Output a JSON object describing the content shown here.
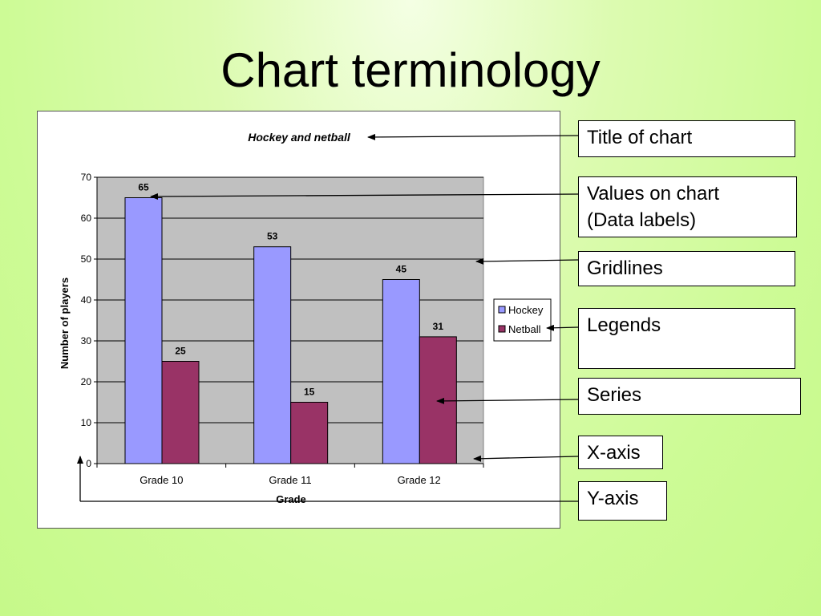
{
  "slide": {
    "title": "Chart terminology"
  },
  "callouts": [
    {
      "id": "title",
      "text": "Title of chart"
    },
    {
      "id": "data-labels",
      "text": "Values on chart\n(Data labels)"
    },
    {
      "id": "gridlines",
      "text": "Gridlines"
    },
    {
      "id": "legends",
      "text": "Legends"
    },
    {
      "id": "series",
      "text": "Series"
    },
    {
      "id": "x-axis",
      "text": "X-axis"
    },
    {
      "id": "y-axis",
      "text": "Y-axis"
    }
  ],
  "colors": {
    "hockey": "#9999ff",
    "netball": "#993366",
    "plot_area": "#c0c0c0"
  },
  "chart_data": {
    "type": "bar",
    "title": "Hockey and netball",
    "xlabel": "Grade",
    "ylabel": "Number of players",
    "categories": [
      "Grade 10",
      "Grade 11",
      "Grade 12"
    ],
    "series": [
      {
        "name": "Hockey",
        "values": [
          65,
          53,
          45
        ]
      },
      {
        "name": "Netball",
        "values": [
          25,
          15,
          31
        ]
      }
    ],
    "ylim": [
      0,
      70
    ],
    "yticks": [
      0,
      10,
      20,
      30,
      40,
      50,
      60,
      70
    ],
    "grid": true,
    "legend": "right",
    "data_labels": true
  }
}
